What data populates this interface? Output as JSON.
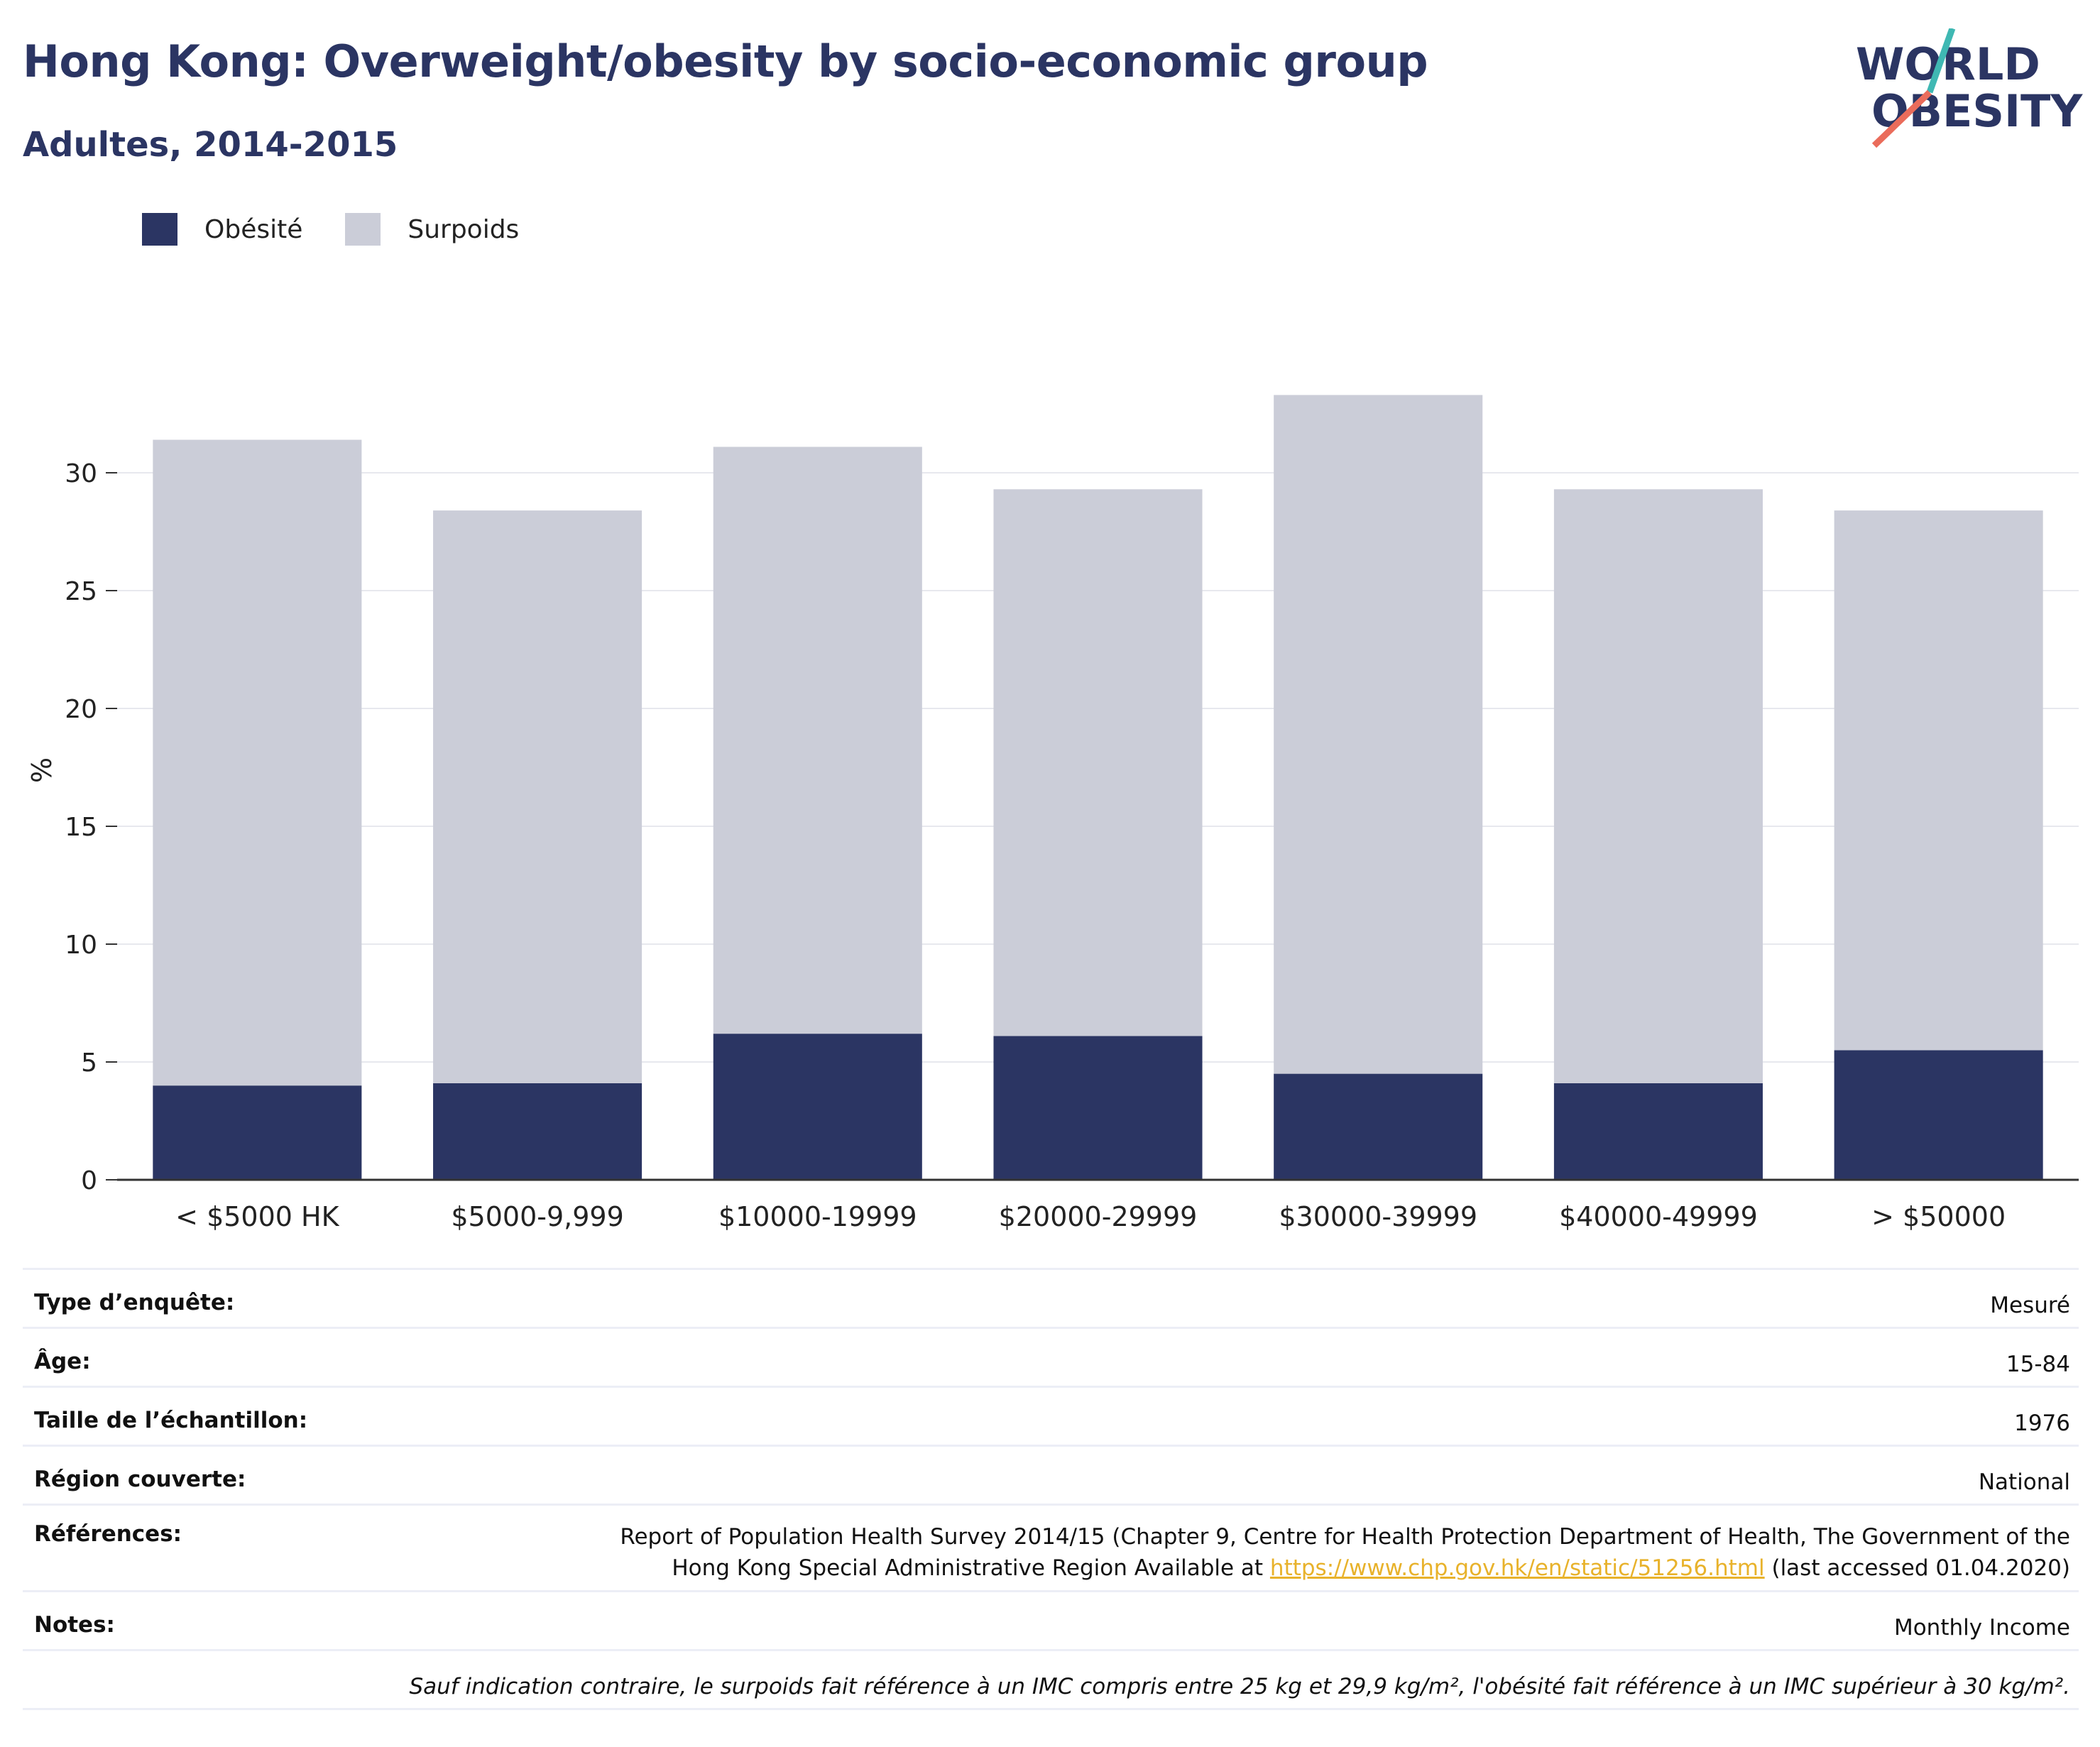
{
  "header": {
    "title": "Hong Kong: Overweight/obesity by socio-economic group",
    "subtitle": "Adultes, 2014-2015"
  },
  "logo": {
    "line1": "WORLD",
    "line2": "OBESITY"
  },
  "colors": {
    "obesity": "#2b3563",
    "overweight": "#cbcdd8",
    "title": "#2b3563",
    "link": "#e8b22b"
  },
  "chart_data": {
    "type": "bar",
    "stacked": true,
    "categories": [
      "< $5000 HK",
      "$5000-9,999",
      "$10000-19999",
      "$20000-29999",
      "$30000-39999",
      "$40000-49999",
      "> $50000"
    ],
    "series": [
      {
        "name": "Obésité",
        "values": [
          4.0,
          4.1,
          6.2,
          6.1,
          4.5,
          4.1,
          5.5
        ]
      },
      {
        "name": "Surpoids",
        "values": [
          27.4,
          24.3,
          24.9,
          23.2,
          28.8,
          25.2,
          22.9
        ]
      }
    ],
    "ylabel": "%",
    "xlabel": "",
    "ylim": [
      0,
      35
    ],
    "yticks": [
      0,
      5,
      10,
      15,
      20,
      25,
      30
    ],
    "grid": true,
    "legend_position": "top-left"
  },
  "info": {
    "rows": [
      {
        "key": "Type d’enquête:",
        "value": "Mesuré"
      },
      {
        "key": "Âge:",
        "value": "15-84"
      },
      {
        "key": "Taille de l’échantillon:",
        "value": "1976"
      },
      {
        "key": "Région couverte:",
        "value": "National"
      }
    ],
    "references_key": "Références:",
    "references_line1": "Report of Population Health Survey 2014/15 (Chapter 9, Centre for Health Protection Department of Health, The Government of the",
    "references_line2_pre": "Hong Kong Special Administrative Region Available at ",
    "references_link": "https://www.chp.gov.hk/en/static/51256.html",
    "references_line2_post": " (last accessed 01.04.2020)",
    "notes_key": "Notes:",
    "notes_value": "Monthly Income",
    "footnote": "Sauf indication contraire, le surpoids fait référence à un IMC compris entre 25 kg et 29,9 kg/m², l'obésité fait référence à un IMC supérieur à 30 kg/m²."
  }
}
